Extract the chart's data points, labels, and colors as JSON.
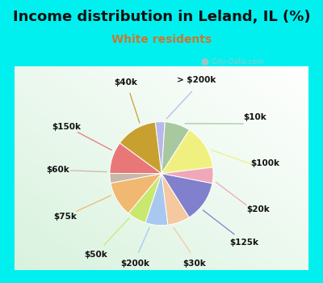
{
  "title": "Income distribution in Leland, IL (%)",
  "subtitle": "White residents",
  "bg_cyan": "#00f0f0",
  "bg_chart_color1": "#f0fff8",
  "bg_chart_color2": "#c8e8d8",
  "labels": [
    "> $200k",
    "$10k",
    "$100k",
    "$20k",
    "$125k",
    "$30k",
    "$200k",
    "$50k",
    "$75k",
    "$60k",
    "$150k",
    "$40k"
  ],
  "values": [
    3,
    8,
    14,
    5,
    13,
    7,
    7,
    6,
    11,
    3,
    10,
    13
  ],
  "colors": [
    "#b8b8e8",
    "#a8c8a0",
    "#f0f080",
    "#f0a8b8",
    "#8080cc",
    "#f5c8a0",
    "#a8c8f0",
    "#c8e870",
    "#f0b870",
    "#c8b8a8",
    "#e87878",
    "#c8a030"
  ],
  "title_fontsize": 13,
  "subtitle_fontsize": 10,
  "subtitle_color": "#c87830",
  "startangle": 97,
  "label_fontsize": 7.5,
  "watermark_text": "City-Data.com"
}
